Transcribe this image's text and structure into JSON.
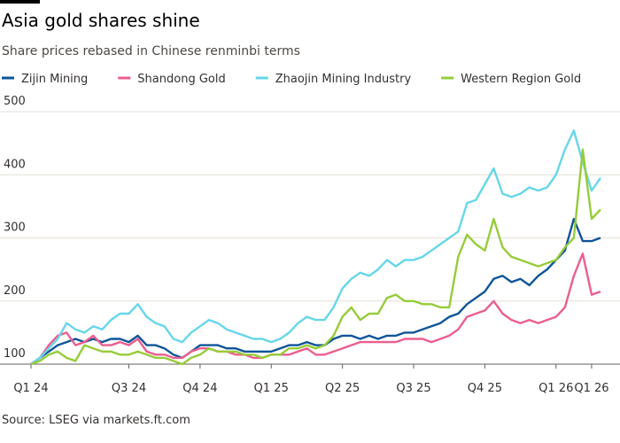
{
  "chart_data": {
    "type": "line",
    "title": "Asia gold shares shine",
    "subtitle": "Share prices rebased in Chinese renminbi terms",
    "source": "Source: LSEG via markets.ft.com",
    "categories": [
      "Q1 24",
      null,
      null,
      null,
      null,
      null,
      null,
      null,
      null,
      null,
      null,
      "Q3 24",
      null,
      null,
      null,
      null,
      null,
      null,
      null,
      "Q4 24",
      null,
      null,
      null,
      null,
      null,
      null,
      null,
      "Q1 25",
      null,
      null,
      null,
      null,
      null,
      null,
      null,
      "Q2 25",
      null,
      null,
      null,
      null,
      null,
      null,
      null,
      "Q3 25",
      null,
      null,
      null,
      null,
      null,
      null,
      null,
      "Q4 25",
      null,
      null,
      null,
      null,
      null,
      null,
      null,
      "Q1 26",
      null,
      null,
      null,
      "Q1 26",
      null
    ],
    "series": [
      {
        "name": "Zijin Mining",
        "color": "#0f5499",
        "values": [
          100,
          110,
          120,
          130,
          135,
          140,
          135,
          140,
          135,
          140,
          140,
          135,
          145,
          130,
          130,
          125,
          115,
          110,
          120,
          130,
          130,
          130,
          125,
          125,
          120,
          120,
          120,
          120,
          125,
          130,
          130,
          135,
          130,
          130,
          140,
          145,
          145,
          140,
          145,
          140,
          145,
          145,
          150,
          150,
          155,
          160,
          165,
          175,
          180,
          195,
          205,
          215,
          235,
          240,
          230,
          235,
          225,
          240,
          250,
          265,
          280,
          330,
          295,
          295,
          300
        ]
      },
      {
        "name": "Shandong Gold",
        "color": "#eb5e8d",
        "values": [
          100,
          110,
          130,
          145,
          150,
          130,
          135,
          145,
          130,
          130,
          135,
          130,
          140,
          120,
          115,
          115,
          110,
          110,
          120,
          125,
          125,
          120,
          120,
          115,
          115,
          110,
          110,
          115,
          115,
          115,
          120,
          125,
          115,
          115,
          120,
          125,
          130,
          135,
          135,
          135,
          135,
          135,
          140,
          140,
          140,
          135,
          140,
          145,
          155,
          175,
          180,
          185,
          200,
          180,
          170,
          165,
          170,
          165,
          170,
          175,
          190,
          240,
          275,
          210,
          215
        ]
      },
      {
        "name": "Zhaojin Mining Industry",
        "color": "#66d6ea",
        "values": [
          100,
          110,
          125,
          140,
          165,
          155,
          150,
          160,
          155,
          170,
          180,
          180,
          195,
          175,
          165,
          160,
          140,
          135,
          150,
          160,
          170,
          165,
          155,
          150,
          145,
          140,
          140,
          135,
          140,
          150,
          165,
          175,
          170,
          170,
          190,
          220,
          235,
          245,
          240,
          250,
          265,
          255,
          265,
          265,
          270,
          280,
          290,
          300,
          310,
          355,
          360,
          385,
          410,
          370,
          365,
          370,
          380,
          375,
          380,
          400,
          440,
          470,
          420,
          375,
          395
        ]
      },
      {
        "name": "Western Region Gold",
        "color": "#96cc39",
        "values": [
          100,
          105,
          115,
          120,
          110,
          105,
          130,
          125,
          120,
          120,
          115,
          115,
          120,
          115,
          110,
          110,
          105,
          100,
          110,
          115,
          125,
          120,
          120,
          120,
          115,
          115,
          110,
          115,
          115,
          125,
          125,
          130,
          125,
          130,
          145,
          175,
          190,
          170,
          180,
          180,
          205,
          210,
          200,
          200,
          195,
          195,
          190,
          190,
          270,
          305,
          290,
          280,
          330,
          285,
          270,
          265,
          260,
          255,
          260,
          265,
          285,
          300,
          440,
          330,
          345
        ]
      }
    ],
    "ylim": [
      100,
      500
    ],
    "yticks": [
      100,
      200,
      300,
      400,
      500
    ],
    "grid": true
  }
}
